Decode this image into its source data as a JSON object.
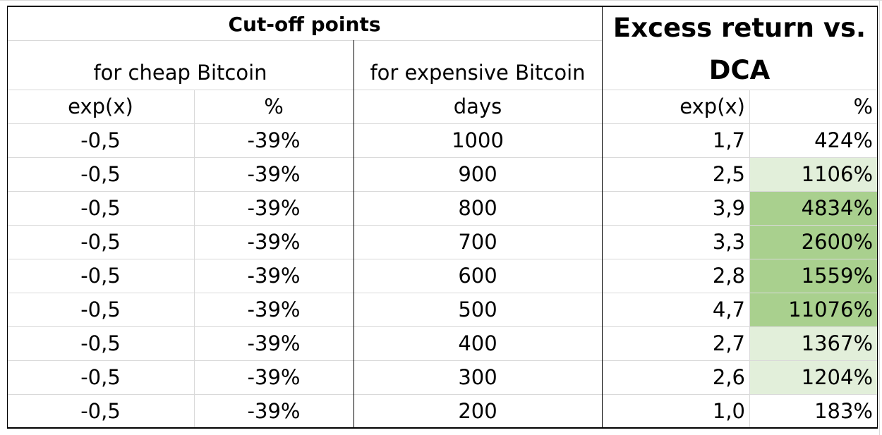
{
  "header": {
    "cutoff_title": "Cut-off points",
    "excess_title_line1": "Excess return vs.",
    "excess_title_line2": "DCA",
    "cheap_label": "for cheap Bitcoin",
    "expensive_label": "for expensive Bitcoin"
  },
  "columns": {
    "cheap_exp": "exp(x)",
    "cheap_pct": "%",
    "exp_days": "days",
    "ret_exp": "exp(x)",
    "ret_pct": "%"
  },
  "rows": [
    {
      "cheap_exp": "-0,5",
      "cheap_pct": "-39%",
      "days": "1000",
      "ret_exp": "1,7",
      "ret_pct": "424%"
    },
    {
      "cheap_exp": "-0,5",
      "cheap_pct": "-39%",
      "days": "900",
      "ret_exp": "2,5",
      "ret_pct": "1106%"
    },
    {
      "cheap_exp": "-0,5",
      "cheap_pct": "-39%",
      "days": "800",
      "ret_exp": "3,9",
      "ret_pct": "4834%"
    },
    {
      "cheap_exp": "-0,5",
      "cheap_pct": "-39%",
      "days": "700",
      "ret_exp": "3,3",
      "ret_pct": "2600%"
    },
    {
      "cheap_exp": "-0,5",
      "cheap_pct": "-39%",
      "days": "600",
      "ret_exp": "2,8",
      "ret_pct": "1559%"
    },
    {
      "cheap_exp": "-0,5",
      "cheap_pct": "-39%",
      "days": "500",
      "ret_exp": "4,7",
      "ret_pct": "11076%"
    },
    {
      "cheap_exp": "-0,5",
      "cheap_pct": "-39%",
      "days": "400",
      "ret_exp": "2,7",
      "ret_pct": "1367%"
    },
    {
      "cheap_exp": "-0,5",
      "cheap_pct": "-39%",
      "days": "300",
      "ret_exp": "2,6",
      "ret_pct": "1204%"
    },
    {
      "cheap_exp": "-0,5",
      "cheap_pct": "-39%",
      "days": "200",
      "ret_exp": "1,0",
      "ret_pct": "183%"
    }
  ],
  "colors": {
    "strong_green": "#a9d08e",
    "light_green": "#e2efda",
    "gridline": "#d9d9d9",
    "border": "#000000"
  }
}
